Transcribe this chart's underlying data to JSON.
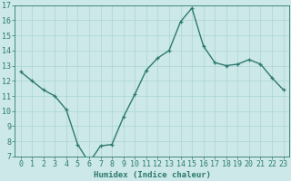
{
  "x": [
    0,
    1,
    2,
    3,
    4,
    5,
    6,
    7,
    8,
    9,
    10,
    11,
    12,
    13,
    14,
    15,
    16,
    17,
    18,
    19,
    20,
    21,
    22,
    23
  ],
  "y": [
    12.6,
    12.0,
    11.4,
    11.0,
    10.1,
    7.8,
    6.6,
    7.7,
    7.8,
    9.6,
    11.1,
    12.7,
    13.5,
    14.0,
    15.9,
    16.8,
    14.3,
    13.2,
    13.0,
    13.1,
    13.4,
    13.1,
    12.2,
    11.4
  ],
  "xlabel": "Humidex (Indice chaleur)",
  "ylim": [
    7,
    17
  ],
  "xlim_min": -0.5,
  "xlim_max": 23.5,
  "yticks": [
    7,
    8,
    9,
    10,
    11,
    12,
    13,
    14,
    15,
    16,
    17
  ],
  "xticks": [
    0,
    1,
    2,
    3,
    4,
    5,
    6,
    7,
    8,
    9,
    10,
    11,
    12,
    13,
    14,
    15,
    16,
    17,
    18,
    19,
    20,
    21,
    22,
    23
  ],
  "line_color": "#2d7a6e",
  "marker": "+",
  "bg_color": "#cce8e8",
  "grid_color": "#aad4d4",
  "tick_label_color": "#2d7a6e",
  "xlabel_color": "#2d7a6e",
  "xlabel_fontsize": 6.5,
  "tick_fontsize": 6.0,
  "linewidth": 1.0,
  "markersize": 3.5
}
